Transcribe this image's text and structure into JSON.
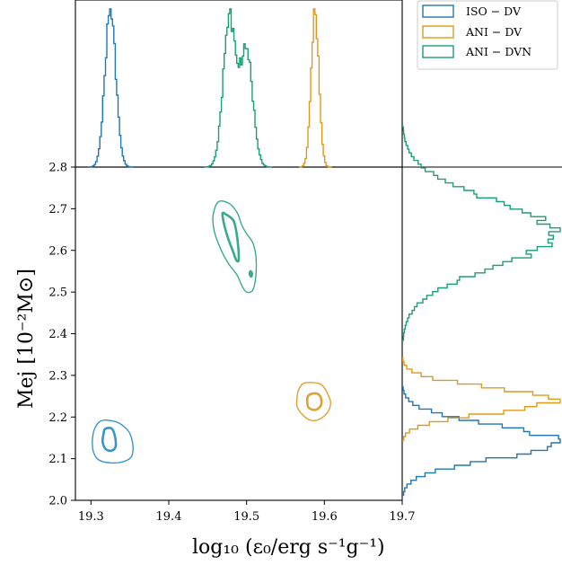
{
  "chart_data": {
    "type": "corner-plot",
    "xlabel": "log₁₀ (ε₀/erg s⁻¹g⁻¹)",
    "ylabel": "Mej [10⁻²M⊙]",
    "xlim": [
      19.28,
      19.7
    ],
    "ylim": [
      2.0,
      2.8
    ],
    "xticks": [
      "19.3",
      "19.4",
      "19.5",
      "19.6",
      "19.7"
    ],
    "yticks": [
      "2.0",
      "2.1",
      "2.2",
      "2.3",
      "2.4",
      "2.5",
      "2.6",
      "2.7",
      "2.8"
    ],
    "legend": {
      "placement": "top-right"
    },
    "series": [
      {
        "name": "ISO − DV",
        "color": "#1f77b4",
        "contour_color": "#3a94c8",
        "centre": [
          19.325,
          2.147
        ],
        "contours": [
          {
            "level": "inner",
            "x": [
              19.318,
              19.326,
              19.33,
              19.332,
              19.33,
              19.324,
              19.318,
              19.315,
              19.316,
              19.318
            ],
            "y": [
              2.171,
              2.173,
              2.16,
              2.135,
              2.123,
              2.119,
              2.125,
              2.142,
              2.158,
              2.171
            ]
          },
          {
            "level": "outer",
            "x": [
              19.315,
              19.333,
              19.343,
              19.35,
              19.354,
              19.352,
              19.342,
              19.325,
              19.31,
              19.303,
              19.302,
              19.306,
              19.315
            ],
            "y": [
              2.192,
              2.188,
              2.176,
              2.16,
              2.13,
              2.105,
              2.093,
              2.09,
              2.097,
              2.117,
              2.15,
              2.177,
              2.192
            ]
          }
        ],
        "x_hist": {
          "peak": 19.325,
          "width": 0.007
        },
        "y_hist": {
          "peak": 2.14,
          "width": 0.04
        }
      },
      {
        "name": "ANI − DV",
        "color": "#e09a1a",
        "contour_color": "#e0a133",
        "centre": [
          19.588,
          2.236
        ],
        "contours": [
          {
            "level": "inner",
            "x": [
              19.584,
              19.592,
              19.596,
              19.595,
              19.588,
              19.58,
              19.578,
              19.579,
              19.584
            ],
            "y": [
              2.256,
              2.255,
              2.243,
              2.226,
              2.217,
              2.222,
              2.235,
              2.25,
              2.256
            ]
          },
          {
            "level": "outer",
            "x": [
              19.575,
              19.592,
              19.6,
              19.605,
              19.608,
              19.605,
              19.595,
              19.583,
              19.572,
              19.565,
              19.565,
              19.568,
              19.575
            ],
            "y": [
              2.282,
              2.281,
              2.27,
              2.252,
              2.235,
              2.214,
              2.196,
              2.192,
              2.205,
              2.225,
              2.25,
              2.27,
              2.282
            ]
          }
        ],
        "x_hist": {
          "peak": 19.588,
          "width": 0.005
        },
        "y_hist": {
          "peak": 2.24,
          "width": 0.03
        }
      },
      {
        "name": "ANI − DVN",
        "color": "#1a9e74",
        "contour_color": "#3aab8a",
        "centre": [
          19.485,
          2.61
        ],
        "contours": [
          {
            "level": "inner",
            "x": [
              19.469,
              19.474,
              19.48,
              19.484,
              19.488,
              19.49,
              19.487,
              19.482,
              19.476,
              19.471,
              19.469
            ],
            "y": [
              2.689,
              2.686,
              2.678,
              2.668,
              2.63,
              2.58,
              2.576,
              2.6,
              2.63,
              2.664,
              2.689
            ]
          },
          {
            "level": "inner",
            "x": [
              19.505,
              19.507,
              19.506,
              19.504,
              19.505
            ],
            "y": [
              2.55,
              2.545,
              2.537,
              2.543,
              2.55
            ]
          },
          {
            "level": "outer",
            "x": [
              19.464,
              19.478,
              19.488,
              19.494,
              19.5,
              19.508,
              19.512,
              19.512,
              19.508,
              19.5,
              19.494,
              19.488,
              19.478,
              19.47,
              19.463,
              19.458,
              19.457,
              19.464
            ],
            "y": [
              2.717,
              2.712,
              2.69,
              2.66,
              2.64,
              2.618,
              2.585,
              2.54,
              2.505,
              2.5,
              2.515,
              2.54,
              2.565,
              2.59,
              2.62,
              2.65,
              2.685,
              2.717
            ]
          }
        ],
        "x_hist": {
          "peaks": [
            19.478,
            19.5
          ],
          "width": 0.008
        },
        "y_hist": {
          "peak": 2.64,
          "width": 0.08
        }
      }
    ]
  }
}
